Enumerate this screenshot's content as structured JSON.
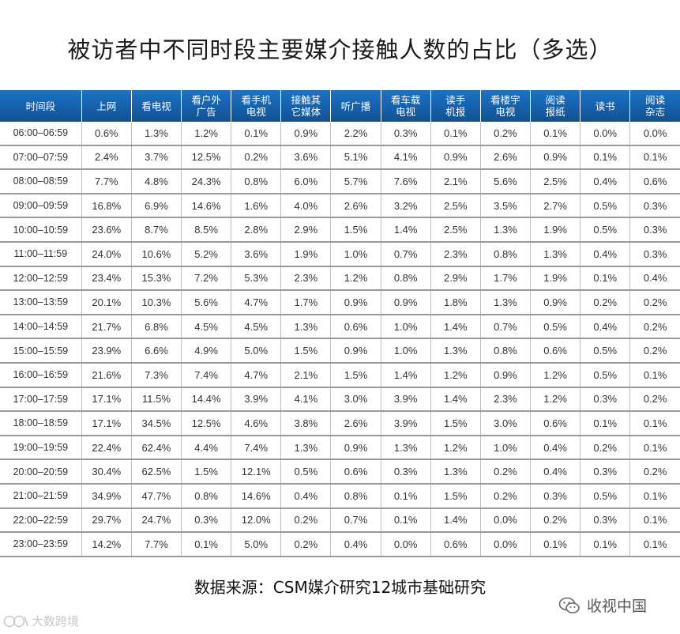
{
  "title": "被访者中不同时段主要媒介接触人数的占比（多选）",
  "source": "数据来源：CSM媒介研究12城市基础研究",
  "watermark_left": "大数跨境",
  "watermark_right": "收视中国",
  "colors": {
    "header_bg": "#1765b3",
    "header_text": "#ffffff",
    "row_border": "#9a9a9a"
  },
  "chart_data": {
    "type": "table",
    "title": "被访者中不同时段主要媒介接触人数的占比（多选）",
    "columns": [
      [
        "时间段"
      ],
      [
        "上网"
      ],
      [
        "看电视"
      ],
      [
        "看户外",
        "广告"
      ],
      [
        "看手机",
        "电视"
      ],
      [
        "接触其",
        "它媒体"
      ],
      [
        "听广播"
      ],
      [
        "看车载",
        "电视"
      ],
      [
        "读手",
        "机报"
      ],
      [
        "看楼宇",
        "电视"
      ],
      [
        "阅读",
        "报纸"
      ],
      [
        "读书"
      ],
      [
        "阅读",
        "杂志"
      ]
    ],
    "rows": [
      [
        "06:00–06:59",
        "0.6%",
        "1.3%",
        "1.2%",
        "0.1%",
        "0.9%",
        "2.2%",
        "0.3%",
        "0.1%",
        "0.2%",
        "0.1%",
        "0.0%",
        "0.0%"
      ],
      [
        "07:00–07:59",
        "2.4%",
        "3.7%",
        "12.5%",
        "0.2%",
        "3.6%",
        "5.1%",
        "4.1%",
        "0.9%",
        "2.6%",
        "0.9%",
        "0.1%",
        "0.1%"
      ],
      [
        "08:00–08:59",
        "7.7%",
        "4.8%",
        "24.3%",
        "0.8%",
        "6.0%",
        "5.7%",
        "7.6%",
        "2.1%",
        "5.6%",
        "2.5%",
        "0.4%",
        "0.6%"
      ],
      [
        "09:00–09:59",
        "16.8%",
        "6.9%",
        "14.6%",
        "1.6%",
        "4.0%",
        "2.6%",
        "3.2%",
        "2.5%",
        "3.5%",
        "2.7%",
        "0.5%",
        "0.3%"
      ],
      [
        "10:00–10:59",
        "23.6%",
        "8.7%",
        "8.5%",
        "2.8%",
        "2.9%",
        "1.5%",
        "1.4%",
        "2.5%",
        "1.3%",
        "1.9%",
        "0.5%",
        "0.3%"
      ],
      [
        "11:00–11:59",
        "24.0%",
        "10.6%",
        "5.2%",
        "3.6%",
        "1.9%",
        "1.0%",
        "0.7%",
        "2.3%",
        "0.8%",
        "1.3%",
        "0.4%",
        "0.3%"
      ],
      [
        "12:00–12:59",
        "23.4%",
        "15.3%",
        "7.2%",
        "5.3%",
        "2.3%",
        "1.2%",
        "0.8%",
        "2.9%",
        "1.7%",
        "1.9%",
        "0.1%",
        "0.4%"
      ],
      [
        "13:00–13:59",
        "20.1%",
        "10.3%",
        "5.6%",
        "4.7%",
        "1.7%",
        "0.9%",
        "0.9%",
        "1.8%",
        "1.3%",
        "0.9%",
        "0.2%",
        "0.2%"
      ],
      [
        "14:00–14:59",
        "21.7%",
        "6.8%",
        "4.5%",
        "4.5%",
        "1.3%",
        "0.6%",
        "1.0%",
        "1.4%",
        "0.7%",
        "0.5%",
        "0.4%",
        "0.2%"
      ],
      [
        "15:00–15:59",
        "23.9%",
        "6.6%",
        "4.9%",
        "5.0%",
        "1.5%",
        "0.9%",
        "1.0%",
        "1.3%",
        "0.8%",
        "0.6%",
        "0.5%",
        "0.2%"
      ],
      [
        "16:00–16:59",
        "21.6%",
        "7.3%",
        "7.4%",
        "4.7%",
        "2.1%",
        "1.5%",
        "1.4%",
        "1.2%",
        "0.9%",
        "1.2%",
        "0.5%",
        "0.1%"
      ],
      [
        "17:00–17:59",
        "17.1%",
        "11.5%",
        "14.4%",
        "3.9%",
        "4.1%",
        "3.0%",
        "3.9%",
        "1.4%",
        "2.3%",
        "1.2%",
        "0.3%",
        "0.2%"
      ],
      [
        "18:00–18:59",
        "17.1%",
        "34.5%",
        "12.5%",
        "4.6%",
        "3.8%",
        "2.6%",
        "3.9%",
        "1.5%",
        "3.0%",
        "0.6%",
        "0.1%",
        "0.1%"
      ],
      [
        "19:00–19:59",
        "22.4%",
        "62.4%",
        "4.4%",
        "7.4%",
        "1.3%",
        "0.9%",
        "1.3%",
        "1.2%",
        "1.0%",
        "0.4%",
        "0.2%",
        "0.1%"
      ],
      [
        "20:00–20:59",
        "30.4%",
        "62.5%",
        "1.5%",
        "12.1%",
        "0.5%",
        "0.6%",
        "0.3%",
        "1.3%",
        "0.2%",
        "0.4%",
        "0.3%",
        "0.2%"
      ],
      [
        "21:00–21:59",
        "34.9%",
        "47.7%",
        "0.8%",
        "14.6%",
        "0.4%",
        "0.8%",
        "0.1%",
        "1.5%",
        "0.2%",
        "0.3%",
        "0.5%",
        "0.1%"
      ],
      [
        "22:00–22:59",
        "29.7%",
        "24.7%",
        "0.3%",
        "12.0%",
        "0.2%",
        "0.7%",
        "0.1%",
        "1.4%",
        "0.0%",
        "0.2%",
        "0.3%",
        "0.1%"
      ],
      [
        "23:00–23:59",
        "14.2%",
        "7.7%",
        "0.1%",
        "5.0%",
        "0.2%",
        "0.4%",
        "0.0%",
        "0.6%",
        "0.0%",
        "0.1%",
        "0.1%",
        "0.1%"
      ]
    ]
  }
}
